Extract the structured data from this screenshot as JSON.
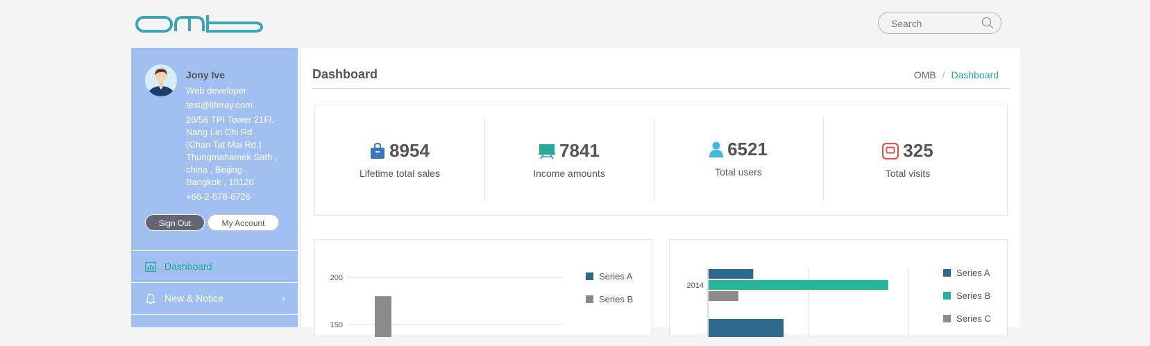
{
  "header": {
    "logo_text": "omb",
    "search": {
      "placeholder": "Search"
    }
  },
  "profile": {
    "name": "Jony Ive",
    "role": "Web developer",
    "email": "test@liferay.com",
    "address": [
      "26/56 TPI Tower 21Fl.",
      "Nang Lin Chi Rd.",
      "(Chan Tat Mai Rd.)",
      "Thungmahamek Sath ,",
      "china , Beijing ,",
      "Bangkok , 10120"
    ],
    "phone": "+66-2-678-6726",
    "sign_out_label": "Sign Out",
    "my_account_label": "My Account"
  },
  "sidebar": {
    "items": [
      {
        "label": "Dashboard",
        "icon": "bar-chart-icon",
        "active": true
      },
      {
        "label": "New & Notice",
        "icon": "bell-icon",
        "has_submenu": true
      }
    ]
  },
  "page": {
    "title": "Dashboard",
    "breadcrumb": [
      "OMB",
      "Dashboard"
    ]
  },
  "stats": [
    {
      "value": "8954",
      "label": "Lifetime total sales",
      "icon": "shopping-bag-icon",
      "color": "#3876bf"
    },
    {
      "value": "7841",
      "label": "Income amounts",
      "icon": "presentation-icon",
      "color": "#27a99a"
    },
    {
      "value": "6521",
      "label": "Total users",
      "icon": "user-icon",
      "color": "#3fb8dd"
    },
    {
      "value": "325",
      "label": "Total visits",
      "icon": "visits-icon",
      "color": "#d9534f"
    }
  ],
  "colors": {
    "accent": "#27a99a",
    "series_a": "#2e6a8e",
    "series_b": "#8a8a8a",
    "series_c": "#8a8a8a",
    "series_b_teal": "#26b59a"
  },
  "chart_data": [
    {
      "type": "bar",
      "y_ticks": [
        "200",
        "150"
      ],
      "series": [
        {
          "name": "Series A",
          "values": []
        },
        {
          "name": "Series B",
          "values": [
            180
          ]
        }
      ],
      "legend": [
        "Series A",
        "Series B"
      ],
      "ylim": [
        0,
        200
      ]
    },
    {
      "type": "bar",
      "orientation": "horizontal",
      "categories": [
        "2014"
      ],
      "series": [
        {
          "name": "Series A",
          "values": [
            45
          ]
        },
        {
          "name": "Series B",
          "values": [
            181
          ]
        },
        {
          "name": "Series C",
          "values": [
            30
          ]
        }
      ],
      "legend": [
        "Series A",
        "Series B",
        "Series C"
      ]
    }
  ]
}
